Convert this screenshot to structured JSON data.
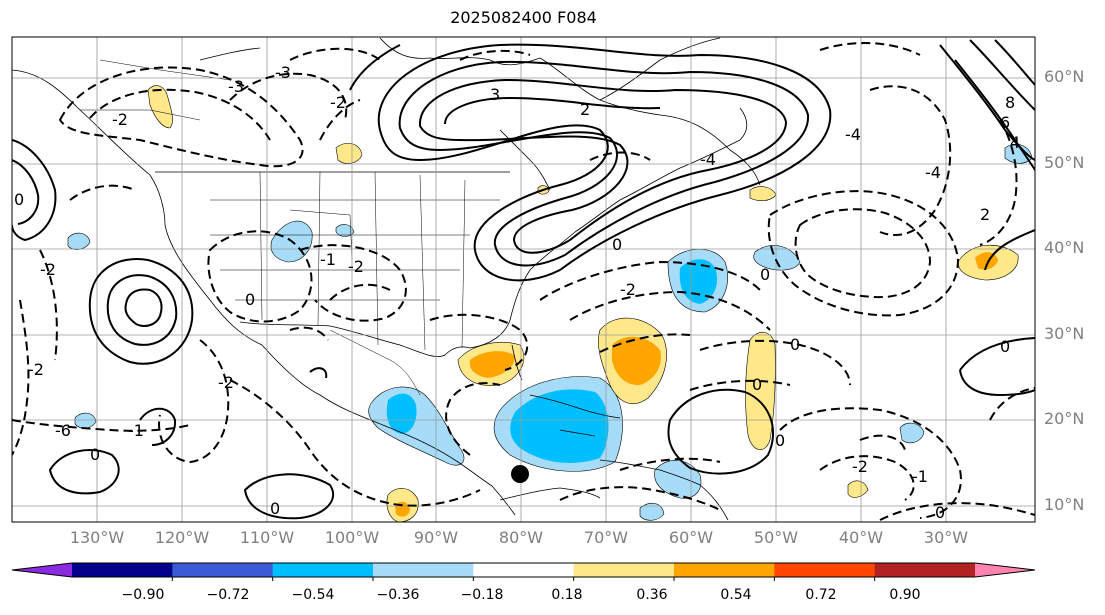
{
  "title": "2025082400 F084",
  "lat_labels": [
    "60°N",
    "50°N",
    "40°N",
    "30°N",
    "20°N",
    "10°N"
  ],
  "lon_labels": [
    "130°W",
    "120°W",
    "110°W",
    "100°W",
    "90°W",
    "80°W",
    "70°W",
    "60°W",
    "50°W",
    "40°W",
    "30°W"
  ],
  "colorbar": {
    "colors": [
      "#8a2be2",
      "#00008b",
      "#3b5bd6",
      "#00bfff",
      "#a6dcf7",
      "#ffffff",
      "#ffe88a",
      "#ffa500",
      "#ff4500",
      "#b22222",
      "#ff85b0"
    ],
    "ticks": [
      "−0.90",
      "−0.72",
      "−0.54",
      "−0.36",
      "−0.18",
      "0.18",
      "0.36",
      "0.54",
      "0.72",
      "0.90"
    ]
  },
  "contour_labels": [
    "0",
    "-2",
    "-2",
    "-3",
    "-3",
    "3",
    "2",
    "-1",
    "-2",
    "-2",
    "0",
    "-2",
    "-4",
    "8",
    "6",
    "4",
    "2",
    "-4",
    "-4",
    "-2",
    "0",
    "0",
    "0",
    "0",
    "0",
    "0",
    "0",
    "0",
    "-2",
    "-1",
    "0",
    "-2",
    "-1",
    "-6"
  ],
  "marker": "storm-position"
}
